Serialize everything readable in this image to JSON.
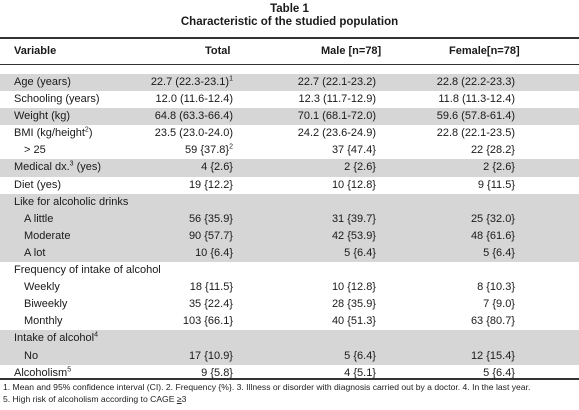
{
  "caption": {
    "label": "Table 1",
    "title": "Characteristic of the studied population"
  },
  "columns": [
    "Variable",
    "Total",
    "Male [n=78]",
    "Female[n=78]"
  ],
  "rows": [
    {
      "shade": true,
      "indent": false,
      "variable": "Age (years)",
      "sup": "",
      "total": "22.7 (22.3-23.1)",
      "total_sup": "1",
      "male": "22.7 (22.1-23.2)",
      "female": "22.8 (22.2-23.3)"
    },
    {
      "shade": false,
      "indent": false,
      "variable": "Schooling (years)",
      "sup": "",
      "total": "12.0 (11.6-12.4)",
      "total_sup": "",
      "male": "12.3 (11.7-12.9)",
      "female": "11.8 (11.3-12.4)"
    },
    {
      "shade": true,
      "indent": false,
      "variable": "Weight (kg)",
      "sup": "",
      "total": "64.8 (63.3-66.4)",
      "total_sup": "",
      "male": "70.1 (68.1-72.0)",
      "female": "59.6 (57.8-61.4)"
    },
    {
      "shade": false,
      "indent": false,
      "variable": "BMI (kg/height",
      "sup": "2",
      "suffix": ")",
      "total": "23.5 (23.0-24.0)",
      "total_sup": "",
      "male": "24.2 (23.6-24.9)",
      "female": "22.8 (22.1-23.5)"
    },
    {
      "shade": false,
      "indent": true,
      "variable": "> 25",
      "sup": "",
      "total": "59 {37.8}",
      "total_sup": "2",
      "male": "37 {47.4}",
      "female": "22 {28.2}"
    },
    {
      "shade": true,
      "indent": false,
      "variable": "Medical dx.",
      "sup": "3",
      "suffix": " (yes)",
      "total": "4 {2.6}",
      "total_sup": "",
      "male": "2 {2.6}",
      "female": "2 {2.6}"
    },
    {
      "shade": false,
      "indent": false,
      "variable": "Diet (yes)",
      "sup": "",
      "total": "19 {12.2}",
      "total_sup": "",
      "male": "10 {12.8}",
      "female": "9 {11.5}"
    },
    {
      "shade": true,
      "indent": false,
      "variable": "Like for alcoholic drinks",
      "sup": "",
      "total": "",
      "total_sup": "",
      "male": "",
      "female": ""
    },
    {
      "shade": true,
      "indent": true,
      "variable": "A little",
      "sup": "",
      "total": "56 {35.9}",
      "total_sup": "",
      "male": "31 {39.7}",
      "female": "25 {32.0}"
    },
    {
      "shade": true,
      "indent": true,
      "variable": "Moderate",
      "sup": "",
      "total": "90 {57.7}",
      "total_sup": "",
      "male": "42 {53.9}",
      "female": "48 {61.6}"
    },
    {
      "shade": true,
      "indent": true,
      "variable": "A lot",
      "sup": "",
      "total": "10 {6.4}",
      "total_sup": "",
      "male": "5 {6.4}",
      "female": "5 {6.4}"
    },
    {
      "shade": false,
      "indent": false,
      "variable": "Frequency of intake of alcohol",
      "sup": "",
      "total": "",
      "total_sup": "",
      "male": "",
      "female": ""
    },
    {
      "shade": false,
      "indent": true,
      "variable": "Weekly",
      "sup": "",
      "total": "18 {11.5}",
      "total_sup": "",
      "male": "10 {12.8}",
      "female": "8 {10.3}"
    },
    {
      "shade": false,
      "indent": true,
      "variable": "Biweekly",
      "sup": "",
      "total": "35 {22.4}",
      "total_sup": "",
      "male": "28 {35.9}",
      "female": "7 {9.0}"
    },
    {
      "shade": false,
      "indent": true,
      "variable": "Monthly",
      "sup": "",
      "total": "103 {66.1}",
      "total_sup": "",
      "male": "40 {51.3}",
      "female": "63 {80.7}"
    },
    {
      "shade": true,
      "indent": false,
      "variable": "Intake of alcohol",
      "sup": "4",
      "total": "",
      "total_sup": "",
      "male": "",
      "female": ""
    },
    {
      "shade": true,
      "indent": true,
      "variable": "No",
      "sup": "",
      "total": "17 {10.9}",
      "total_sup": "",
      "male": "5 {6.4}",
      "female": "12 {15.4}"
    },
    {
      "shade": false,
      "indent": false,
      "variable": "Alcoholism",
      "sup": "5",
      "total": "9 {5.8}",
      "total_sup": "",
      "male": "4 {5.1}",
      "female": "5 {6.4}"
    }
  ],
  "footnotes": {
    "line1": "1. Mean and 95% confidence interval (CI). 2. Frequency {%}. 3. Illness or disorder with diagnosis carried out by a doctor. 4. In the last year.",
    "line2_prefix": "5. High risk of alcoholism according to CAGE ",
    "line2_geq": "≥",
    "line2_value": "3"
  },
  "colors": {
    "shade": "#d6d6d6",
    "rule": "#333333"
  }
}
